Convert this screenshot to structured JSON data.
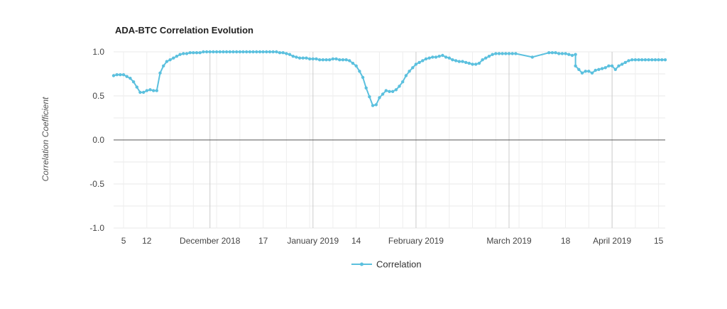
{
  "chart_data": {
    "type": "line",
    "title": "ADA-BTC Correlation Evolution",
    "xlabel": "",
    "ylabel": "Correlation Coefficient",
    "ylim": [
      -1.0,
      1.0
    ],
    "yticks": [
      -1.0,
      -0.5,
      0.0,
      0.5,
      1.0
    ],
    "ytick_labels": [
      "-1.0",
      "-0.5",
      "0.0",
      "0.5",
      "1.0"
    ],
    "xlim": [
      "2018-11-02",
      "2019-04-17"
    ],
    "xticks": [
      {
        "date": "2018-11-05",
        "label": "5"
      },
      {
        "date": "2018-11-12",
        "label": "12"
      },
      {
        "date": "2018-12-01",
        "label": "December 2018"
      },
      {
        "date": "2018-12-17",
        "label": "17"
      },
      {
        "date": "2019-01-01",
        "label": "January 2019"
      },
      {
        "date": "2019-01-14",
        "label": "14"
      },
      {
        "date": "2019-02-01",
        "label": "February 2019"
      },
      {
        "date": "2019-03-01",
        "label": "March 2019"
      },
      {
        "date": "2019-03-18",
        "label": "18"
      },
      {
        "date": "2019-04-01",
        "label": "April 2019"
      },
      {
        "date": "2019-04-15",
        "label": "15"
      }
    ],
    "grid": true,
    "legend_position": "bottom-center",
    "series": [
      {
        "name": "Correlation",
        "color": "#5bc0de",
        "points": [
          [
            "2018-11-02",
            0.73
          ],
          [
            "2018-11-03",
            0.74
          ],
          [
            "2018-11-04",
            0.74
          ],
          [
            "2018-11-05",
            0.74
          ],
          [
            "2018-11-06",
            0.72
          ],
          [
            "2018-11-07",
            0.7
          ],
          [
            "2018-11-08",
            0.66
          ],
          [
            "2018-11-09",
            0.6
          ],
          [
            "2018-11-10",
            0.54
          ],
          [
            "2018-11-11",
            0.54
          ],
          [
            "2018-11-12",
            0.56
          ],
          [
            "2018-11-13",
            0.57
          ],
          [
            "2018-11-14",
            0.56
          ],
          [
            "2018-11-15",
            0.56
          ],
          [
            "2018-11-16",
            0.76
          ],
          [
            "2018-11-17",
            0.84
          ],
          [
            "2018-11-18",
            0.89
          ],
          [
            "2018-11-19",
            0.91
          ],
          [
            "2018-11-20",
            0.93
          ],
          [
            "2018-11-21",
            0.95
          ],
          [
            "2018-11-22",
            0.97
          ],
          [
            "2018-11-23",
            0.98
          ],
          [
            "2018-11-24",
            0.98
          ],
          [
            "2018-11-25",
            0.99
          ],
          [
            "2018-11-26",
            0.99
          ],
          [
            "2018-11-27",
            0.99
          ],
          [
            "2018-11-28",
            0.99
          ],
          [
            "2018-11-29",
            1.0
          ],
          [
            "2018-11-30",
            1.0
          ],
          [
            "2018-12-01",
            1.0
          ],
          [
            "2018-12-02",
            1.0
          ],
          [
            "2018-12-03",
            1.0
          ],
          [
            "2018-12-04",
            1.0
          ],
          [
            "2018-12-05",
            1.0
          ],
          [
            "2018-12-06",
            1.0
          ],
          [
            "2018-12-07",
            1.0
          ],
          [
            "2018-12-08",
            1.0
          ],
          [
            "2018-12-09",
            1.0
          ],
          [
            "2018-12-10",
            1.0
          ],
          [
            "2018-12-11",
            1.0
          ],
          [
            "2018-12-12",
            1.0
          ],
          [
            "2018-12-13",
            1.0
          ],
          [
            "2018-12-14",
            1.0
          ],
          [
            "2018-12-15",
            1.0
          ],
          [
            "2018-12-16",
            1.0
          ],
          [
            "2018-12-17",
            1.0
          ],
          [
            "2018-12-18",
            1.0
          ],
          [
            "2018-12-19",
            1.0
          ],
          [
            "2018-12-20",
            1.0
          ],
          [
            "2018-12-21",
            1.0
          ],
          [
            "2018-12-22",
            0.99
          ],
          [
            "2018-12-23",
            0.99
          ],
          [
            "2018-12-24",
            0.98
          ],
          [
            "2018-12-25",
            0.97
          ],
          [
            "2018-12-26",
            0.95
          ],
          [
            "2018-12-27",
            0.94
          ],
          [
            "2018-12-28",
            0.93
          ],
          [
            "2018-12-29",
            0.93
          ],
          [
            "2018-12-30",
            0.93
          ],
          [
            "2018-12-31",
            0.92
          ],
          [
            "2019-01-01",
            0.92
          ],
          [
            "2019-01-02",
            0.92
          ],
          [
            "2019-01-03",
            0.91
          ],
          [
            "2019-01-04",
            0.91
          ],
          [
            "2019-01-05",
            0.91
          ],
          [
            "2019-01-06",
            0.91
          ],
          [
            "2019-01-07",
            0.92
          ],
          [
            "2019-01-08",
            0.92
          ],
          [
            "2019-01-09",
            0.91
          ],
          [
            "2019-01-10",
            0.91
          ],
          [
            "2019-01-11",
            0.91
          ],
          [
            "2019-01-12",
            0.9
          ],
          [
            "2019-01-13",
            0.87
          ],
          [
            "2019-01-14",
            0.84
          ],
          [
            "2019-01-15",
            0.78
          ],
          [
            "2019-01-16",
            0.71
          ],
          [
            "2019-01-17",
            0.59
          ],
          [
            "2019-01-18",
            0.49
          ],
          [
            "2019-01-19",
            0.39
          ],
          [
            "2019-01-20",
            0.4
          ],
          [
            "2019-01-21",
            0.48
          ],
          [
            "2019-01-22",
            0.52
          ],
          [
            "2019-01-23",
            0.56
          ],
          [
            "2019-01-24",
            0.55
          ],
          [
            "2019-01-25",
            0.55
          ],
          [
            "2019-01-26",
            0.57
          ],
          [
            "2019-01-27",
            0.61
          ],
          [
            "2019-01-28",
            0.66
          ],
          [
            "2019-01-29",
            0.73
          ],
          [
            "2019-01-30",
            0.78
          ],
          [
            "2019-01-31",
            0.82
          ],
          [
            "2019-02-01",
            0.86
          ],
          [
            "2019-02-02",
            0.88
          ],
          [
            "2019-02-03",
            0.9
          ],
          [
            "2019-02-04",
            0.92
          ],
          [
            "2019-02-05",
            0.93
          ],
          [
            "2019-02-06",
            0.94
          ],
          [
            "2019-02-07",
            0.94
          ],
          [
            "2019-02-08",
            0.95
          ],
          [
            "2019-02-09",
            0.96
          ],
          [
            "2019-02-10",
            0.94
          ],
          [
            "2019-02-11",
            0.93
          ],
          [
            "2019-02-12",
            0.91
          ],
          [
            "2019-02-13",
            0.9
          ],
          [
            "2019-02-14",
            0.89
          ],
          [
            "2019-02-15",
            0.89
          ],
          [
            "2019-02-16",
            0.88
          ],
          [
            "2019-02-17",
            0.87
          ],
          [
            "2019-02-18",
            0.86
          ],
          [
            "2019-02-19",
            0.86
          ],
          [
            "2019-02-20",
            0.87
          ],
          [
            "2019-02-21",
            0.91
          ],
          [
            "2019-02-22",
            0.93
          ],
          [
            "2019-02-23",
            0.95
          ],
          [
            "2019-02-24",
            0.97
          ],
          [
            "2019-02-25",
            0.98
          ],
          [
            "2019-02-26",
            0.98
          ],
          [
            "2019-02-27",
            0.98
          ],
          [
            "2019-02-28",
            0.98
          ],
          [
            "2019-03-01",
            0.98
          ],
          [
            "2019-03-02",
            0.98
          ],
          [
            "2019-03-03",
            0.98
          ],
          [
            "2019-03-08",
            0.94
          ],
          [
            "2019-03-13",
            0.99
          ],
          [
            "2019-03-14",
            0.99
          ],
          [
            "2019-03-15",
            0.99
          ],
          [
            "2019-03-16",
            0.98
          ],
          [
            "2019-03-17",
            0.98
          ],
          [
            "2019-03-18",
            0.98
          ],
          [
            "2019-03-19",
            0.97
          ],
          [
            "2019-03-20",
            0.96
          ],
          [
            "2019-03-21",
            0.97
          ],
          [
            "2019-03-21",
            0.84
          ],
          [
            "2019-03-22",
            0.8
          ],
          [
            "2019-03-23",
            0.76
          ],
          [
            "2019-03-24",
            0.78
          ],
          [
            "2019-03-25",
            0.78
          ],
          [
            "2019-03-26",
            0.76
          ],
          [
            "2019-03-27",
            0.79
          ],
          [
            "2019-03-28",
            0.8
          ],
          [
            "2019-03-29",
            0.81
          ],
          [
            "2019-03-30",
            0.82
          ],
          [
            "2019-03-31",
            0.84
          ],
          [
            "2019-04-01",
            0.84
          ],
          [
            "2019-04-02",
            0.8
          ],
          [
            "2019-04-03",
            0.84
          ],
          [
            "2019-04-04",
            0.86
          ],
          [
            "2019-04-05",
            0.88
          ],
          [
            "2019-04-06",
            0.9
          ],
          [
            "2019-04-07",
            0.91
          ],
          [
            "2019-04-08",
            0.91
          ],
          [
            "2019-04-09",
            0.91
          ],
          [
            "2019-04-10",
            0.91
          ],
          [
            "2019-04-11",
            0.91
          ],
          [
            "2019-04-12",
            0.91
          ],
          [
            "2019-04-13",
            0.91
          ],
          [
            "2019-04-14",
            0.91
          ],
          [
            "2019-04-15",
            0.91
          ],
          [
            "2019-04-16",
            0.91
          ],
          [
            "2019-04-17",
            0.91
          ]
        ]
      }
    ]
  }
}
